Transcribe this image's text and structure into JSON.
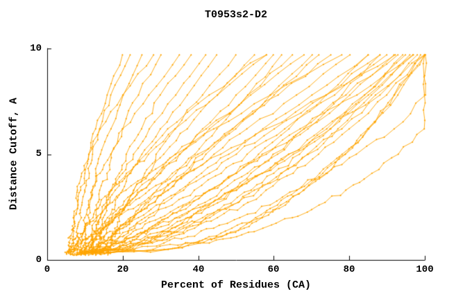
{
  "chart_data": {
    "type": "line",
    "title": "T0953s2-D2",
    "xlabel": "Percent of Residues (CA)",
    "ylabel": "Distance Cutoff, A",
    "xlim": [
      0,
      100
    ],
    "ylim": [
      0,
      10
    ],
    "xticks": [
      0,
      20,
      40,
      60,
      80,
      100
    ],
    "yticks": [
      0,
      5,
      10
    ],
    "xtick_labels": [
      "0",
      "20",
      "40",
      "60",
      "80",
      "100"
    ],
    "ytick_labels": [
      "0",
      "5",
      "10"
    ],
    "grid": false,
    "legend": "none",
    "line_color": "#FFA500",
    "axis_color": "#000000",
    "description": "Each curve is one model: percent of CA residues (x) fitting under each distance cutoff in Angstroms (y). X values below are sampled at the shared y_levels_angstrom.",
    "y_levels_angstrom": [
      0.3,
      0.5,
      0.8,
      1.1,
      1.5,
      2.0,
      2.6,
      3.3,
      4.1,
      5.0,
      6.2,
      7.8,
      9.7
    ],
    "curves_percent_x": [
      [
        8,
        28,
        37,
        43,
        49,
        55,
        61,
        66,
        72,
        78,
        85,
        92,
        100
      ],
      [
        12,
        31,
        39,
        45,
        51,
        57,
        62,
        68,
        74,
        79,
        85,
        93,
        100
      ],
      [
        6,
        17,
        24,
        30,
        36,
        42,
        49,
        55,
        62,
        69,
        78,
        88,
        98
      ],
      [
        10,
        21,
        28,
        33,
        39,
        45,
        52,
        58,
        65,
        72,
        80,
        90,
        100
      ],
      [
        14,
        32,
        40,
        46,
        52,
        57,
        63,
        68,
        73,
        79,
        85,
        92,
        99
      ],
      [
        9,
        20,
        26,
        32,
        37,
        43,
        49,
        56,
        62,
        69,
        77,
        86,
        96
      ],
      [
        7,
        13,
        19,
        24,
        29,
        35,
        42,
        49,
        57,
        65,
        75,
        87,
        100
      ],
      [
        11,
        17,
        22,
        26,
        32,
        37,
        43,
        50,
        57,
        64,
        74,
        85,
        97
      ],
      [
        8,
        14,
        19,
        23,
        28,
        34,
        40,
        46,
        53,
        60,
        69,
        80,
        92
      ],
      [
        13,
        19,
        24,
        28,
        33,
        38,
        44,
        50,
        57,
        64,
        73,
        84,
        95
      ],
      [
        10,
        13,
        16,
        19,
        23,
        27,
        33,
        39,
        46,
        53,
        63,
        76,
        90
      ],
      [
        6,
        9,
        12,
        15,
        19,
        24,
        29,
        36,
        43,
        50,
        60,
        74,
        88
      ],
      [
        15,
        18,
        21,
        24,
        27,
        32,
        37,
        43,
        50,
        57,
        67,
        79,
        93
      ],
      [
        9,
        14,
        19,
        23,
        27,
        32,
        38,
        43,
        50,
        56,
        64,
        74,
        85
      ],
      [
        12,
        15,
        18,
        21,
        25,
        30,
        36,
        43,
        50,
        58,
        68,
        82,
        97
      ],
      [
        7,
        18,
        24,
        30,
        35,
        41,
        47,
        54,
        60,
        67,
        75,
        84,
        94
      ],
      [
        8,
        9,
        11,
        13,
        15,
        18,
        22,
        27,
        33,
        40,
        49,
        61,
        75
      ],
      [
        12,
        13,
        15,
        17,
        19,
        22,
        27,
        32,
        37,
        44,
        53,
        66,
        80
      ],
      [
        10,
        12,
        14,
        17,
        20,
        23,
        27,
        32,
        37,
        42,
        50,
        59,
        70
      ],
      [
        6,
        6,
        7,
        8,
        10,
        13,
        16,
        21,
        27,
        34,
        44,
        59,
        78
      ],
      [
        14,
        15,
        16,
        18,
        20,
        23,
        26,
        31,
        36,
        41,
        49,
        60,
        72
      ],
      [
        9,
        10,
        11,
        13,
        15,
        18,
        21,
        25,
        30,
        35,
        43,
        53,
        65
      ],
      [
        11,
        13,
        15,
        17,
        19,
        22,
        25,
        29,
        34,
        39,
        45,
        53,
        62
      ],
      [
        7,
        7,
        8,
        9,
        10,
        12,
        14,
        17,
        22,
        27,
        34,
        45,
        58
      ],
      [
        13,
        13,
        14,
        15,
        16,
        18,
        21,
        24,
        29,
        34,
        42,
        54,
        68
      ],
      [
        10,
        11,
        12,
        13,
        15,
        17,
        20,
        23,
        27,
        31,
        37,
        45,
        55
      ],
      [
        8,
        8,
        8,
        8,
        8,
        9,
        9,
        10,
        11,
        12,
        14,
        17,
        22
      ],
      [
        10,
        10,
        10,
        10,
        10,
        11,
        11,
        12,
        13,
        14,
        17,
        20,
        25
      ],
      [
        12,
        12,
        12,
        12,
        12,
        13,
        13,
        14,
        16,
        17,
        20,
        24,
        30
      ],
      [
        7,
        7,
        7,
        7,
        7,
        7,
        8,
        8,
        9,
        11,
        14,
        20,
        28
      ],
      [
        9,
        9,
        9,
        9,
        10,
        10,
        11,
        12,
        14,
        17,
        20,
        27,
        35
      ],
      [
        14,
        14,
        14,
        14,
        15,
        15,
        16,
        17,
        19,
        21,
        25,
        30,
        38
      ],
      [
        11,
        11,
        12,
        12,
        13,
        14,
        15,
        17,
        20,
        23,
        27,
        34,
        42
      ],
      [
        6,
        6,
        6,
        6,
        7,
        7,
        8,
        9,
        10,
        11,
        13,
        16,
        20
      ],
      [
        13,
        13,
        14,
        14,
        15,
        16,
        18,
        20,
        22,
        25,
        30,
        37,
        45
      ],
      [
        10,
        23,
        31,
        37,
        44,
        51,
        59,
        66,
        74,
        82,
        92,
        100,
        100
      ],
      [
        8,
        32,
        43,
        50,
        57,
        65,
        72,
        79,
        86,
        93,
        100,
        100,
        100
      ],
      [
        16,
        21,
        25,
        29,
        33,
        38,
        43,
        49,
        54,
        61,
        68,
        78,
        88
      ],
      [
        5,
        7,
        9,
        11,
        14,
        17,
        21,
        25,
        30,
        35,
        41,
        50,
        60
      ],
      [
        16,
        16,
        17,
        17,
        18,
        19,
        21,
        23,
        26,
        29,
        34,
        41,
        50
      ],
      [
        5,
        6,
        9,
        11,
        14,
        18,
        24,
        30,
        37,
        46,
        58,
        74,
        92
      ],
      [
        15,
        16,
        18,
        20,
        22,
        26,
        30,
        35,
        41,
        48,
        57,
        70,
        85
      ],
      [
        12,
        12,
        12,
        13,
        13,
        14,
        16,
        18,
        21,
        26,
        32,
        43,
        58
      ]
    ]
  }
}
